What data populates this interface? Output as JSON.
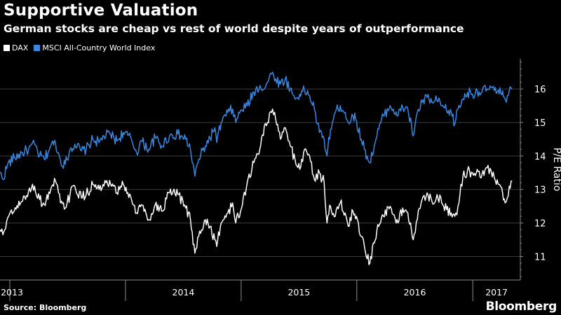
{
  "title": "Supportive Valuation",
  "subtitle": "German stocks are cheap vs rest of world despite years of outperformance",
  "source": "Source: Bloomberg",
  "brand": "Bloomberg",
  "colors": {
    "background": "#000000",
    "dax": "#ffffff",
    "msci": "#3a87e0",
    "grid": "#3c3c3c",
    "axis": "#8a8a8a"
  },
  "chart_data": {
    "type": "line",
    "ylabel": "P/E Ratio",
    "y_axis_side": "right",
    "ylim": [
      10.3,
      16.9
    ],
    "yticks": [
      11,
      12,
      13,
      14,
      15,
      16
    ],
    "xlim": [
      "2012-12-01",
      "2017-05-31"
    ],
    "xticks": [
      {
        "label": "2013",
        "date": "2013-01-01"
      },
      {
        "label": "2014",
        "date": "2014-01-01"
      },
      {
        "label": "2015",
        "date": "2015-01-01"
      },
      {
        "label": "2016",
        "date": "2016-01-01"
      },
      {
        "label": "2017",
        "date": "2017-01-01"
      }
    ],
    "grid": true,
    "legend_position": "top-left",
    "series": [
      {
        "name": "DAX",
        "color": "#ffffff",
        "points": [
          [
            "2012-12-01",
            11.8
          ],
          [
            "2012-12-10",
            11.65
          ],
          [
            "2012-12-25",
            12.15
          ],
          [
            "2013-01-15",
            12.35
          ],
          [
            "2013-02-10",
            12.65
          ],
          [
            "2013-03-01",
            12.95
          ],
          [
            "2013-03-20",
            13.1
          ],
          [
            "2013-04-05",
            12.7
          ],
          [
            "2013-04-20",
            12.55
          ],
          [
            "2013-05-10",
            13.0
          ],
          [
            "2013-05-25",
            13.25
          ],
          [
            "2013-06-10",
            12.6
          ],
          [
            "2013-06-25",
            12.45
          ],
          [
            "2013-07-10",
            12.85
          ],
          [
            "2013-07-25",
            13.1
          ],
          [
            "2013-08-15",
            12.75
          ],
          [
            "2013-08-30",
            12.85
          ],
          [
            "2013-09-20",
            13.15
          ],
          [
            "2013-10-10",
            13.0
          ],
          [
            "2013-10-25",
            13.1
          ],
          [
            "2013-11-15",
            13.15
          ],
          [
            "2013-12-05",
            12.9
          ],
          [
            "2013-12-25",
            13.15
          ],
          [
            "2014-01-20",
            12.7
          ],
          [
            "2014-02-05",
            12.3
          ],
          [
            "2014-02-20",
            12.55
          ],
          [
            "2014-03-15",
            12.1
          ],
          [
            "2014-04-05",
            12.55
          ],
          [
            "2014-04-25",
            12.35
          ],
          [
            "2014-05-20",
            12.9
          ],
          [
            "2014-06-15",
            12.85
          ],
          [
            "2014-07-10",
            12.45
          ],
          [
            "2014-07-25",
            12.1
          ],
          [
            "2014-08-08",
            11.1
          ],
          [
            "2014-08-20",
            11.6
          ],
          [
            "2014-09-10",
            12.1
          ],
          [
            "2014-09-25",
            11.9
          ],
          [
            "2014-10-10",
            11.5
          ],
          [
            "2014-10-16",
            11.3
          ],
          [
            "2014-10-30",
            12.0
          ],
          [
            "2014-11-20",
            12.3
          ],
          [
            "2014-12-05",
            12.6
          ],
          [
            "2014-12-15",
            12.0
          ],
          [
            "2014-12-30",
            12.35
          ],
          [
            "2015-01-20",
            13.2
          ],
          [
            "2015-02-10",
            13.8
          ],
          [
            "2015-03-01",
            14.2
          ],
          [
            "2015-03-15",
            14.9
          ],
          [
            "2015-03-25",
            15.0
          ],
          [
            "2015-04-10",
            15.4
          ],
          [
            "2015-04-20",
            15.1
          ],
          [
            "2015-05-05",
            14.5
          ],
          [
            "2015-05-20",
            14.85
          ],
          [
            "2015-06-05",
            14.3
          ],
          [
            "2015-06-20",
            13.9
          ],
          [
            "2015-07-05",
            13.6
          ],
          [
            "2015-07-20",
            14.2
          ],
          [
            "2015-08-05",
            14.0
          ],
          [
            "2015-08-20",
            13.3
          ],
          [
            "2015-09-05",
            13.5
          ],
          [
            "2015-09-20",
            13.2
          ],
          [
            "2015-09-29",
            12.0
          ],
          [
            "2015-10-10",
            12.5
          ],
          [
            "2015-10-25",
            12.2
          ],
          [
            "2015-11-10",
            12.6
          ],
          [
            "2015-11-25",
            12.3
          ],
          [
            "2015-12-05",
            11.9
          ],
          [
            "2015-12-20",
            12.35
          ],
          [
            "2015-12-31",
            12.2
          ],
          [
            "2016-01-15",
            11.6
          ],
          [
            "2016-01-25",
            11.3
          ],
          [
            "2016-02-11",
            10.8
          ],
          [
            "2016-02-25",
            11.4
          ],
          [
            "2016-03-10",
            11.9
          ],
          [
            "2016-03-25",
            12.2
          ],
          [
            "2016-04-15",
            12.5
          ],
          [
            "2016-04-25",
            12.25
          ],
          [
            "2016-05-10",
            12.0
          ],
          [
            "2016-05-25",
            12.45
          ],
          [
            "2016-06-10",
            12.3
          ],
          [
            "2016-06-27",
            11.5
          ],
          [
            "2016-07-10",
            12.1
          ],
          [
            "2016-07-25",
            12.7
          ],
          [
            "2016-08-10",
            12.9
          ],
          [
            "2016-08-25",
            12.65
          ],
          [
            "2016-09-10",
            12.85
          ],
          [
            "2016-09-25",
            12.6
          ],
          [
            "2016-10-10",
            12.4
          ],
          [
            "2016-10-25",
            12.3
          ],
          [
            "2016-11-05",
            12.2
          ],
          [
            "2016-11-15",
            12.5
          ],
          [
            "2016-12-01",
            13.4
          ],
          [
            "2016-12-15",
            13.55
          ],
          [
            "2016-12-31",
            13.5
          ],
          [
            "2017-01-15",
            13.6
          ],
          [
            "2017-01-30",
            13.45
          ],
          [
            "2017-02-15",
            13.65
          ],
          [
            "2017-02-28",
            13.55
          ],
          [
            "2017-03-10",
            13.35
          ],
          [
            "2017-03-25",
            13.15
          ],
          [
            "2017-04-05",
            12.9
          ],
          [
            "2017-04-13",
            12.6
          ],
          [
            "2017-04-20",
            12.75
          ],
          [
            "2017-04-26",
            13.1
          ],
          [
            "2017-05-05",
            13.25
          ]
        ]
      },
      {
        "name": "MSCI All-Country World Index",
        "color": "#3a87e0",
        "points": [
          [
            "2012-12-01",
            13.5
          ],
          [
            "2012-12-10",
            13.3
          ],
          [
            "2012-12-25",
            13.75
          ],
          [
            "2013-01-15",
            13.95
          ],
          [
            "2013-02-10",
            14.1
          ],
          [
            "2013-03-01",
            14.2
          ],
          [
            "2013-03-20",
            14.35
          ],
          [
            "2013-04-05",
            14.0
          ],
          [
            "2013-04-20",
            13.9
          ],
          [
            "2013-05-10",
            14.3
          ],
          [
            "2013-05-25",
            14.4
          ],
          [
            "2013-06-10",
            13.85
          ],
          [
            "2013-06-25",
            13.75
          ],
          [
            "2013-07-10",
            14.2
          ],
          [
            "2013-07-25",
            14.35
          ],
          [
            "2013-08-15",
            14.15
          ],
          [
            "2013-08-30",
            14.2
          ],
          [
            "2013-09-20",
            14.5
          ],
          [
            "2013-10-10",
            14.4
          ],
          [
            "2013-10-25",
            14.6
          ],
          [
            "2013-11-15",
            14.65
          ],
          [
            "2013-12-05",
            14.45
          ],
          [
            "2013-12-25",
            14.7
          ],
          [
            "2014-01-20",
            14.5
          ],
          [
            "2014-02-05",
            14.1
          ],
          [
            "2014-02-20",
            14.45
          ],
          [
            "2014-03-15",
            14.2
          ],
          [
            "2014-04-05",
            14.55
          ],
          [
            "2014-04-25",
            14.3
          ],
          [
            "2014-05-20",
            14.6
          ],
          [
            "2014-06-15",
            14.65
          ],
          [
            "2014-07-10",
            14.5
          ],
          [
            "2014-07-25",
            14.2
          ],
          [
            "2014-08-08",
            13.4
          ],
          [
            "2014-08-20",
            13.9
          ],
          [
            "2014-09-10",
            14.3
          ],
          [
            "2014-09-25",
            14.55
          ],
          [
            "2014-10-10",
            14.85
          ],
          [
            "2014-10-16",
            14.4
          ],
          [
            "2014-10-30",
            15.0
          ],
          [
            "2014-11-20",
            15.3
          ],
          [
            "2014-12-05",
            15.4
          ],
          [
            "2014-12-15",
            15.0
          ],
          [
            "2014-12-30",
            15.35
          ],
          [
            "2015-01-20",
            15.5
          ],
          [
            "2015-02-10",
            15.9
          ],
          [
            "2015-03-01",
            16.1
          ],
          [
            "2015-03-15",
            16.0
          ],
          [
            "2015-03-25",
            16.2
          ],
          [
            "2015-04-10",
            16.5
          ],
          [
            "2015-04-20",
            16.3
          ],
          [
            "2015-05-05",
            16.15
          ],
          [
            "2015-05-20",
            16.3
          ],
          [
            "2015-06-05",
            16.0
          ],
          [
            "2015-06-20",
            15.7
          ],
          [
            "2015-07-05",
            15.85
          ],
          [
            "2015-07-20",
            15.95
          ],
          [
            "2015-08-05",
            15.8
          ],
          [
            "2015-08-20",
            15.4
          ],
          [
            "2015-09-05",
            14.7
          ],
          [
            "2015-09-20",
            14.5
          ],
          [
            "2015-09-29",
            14.0
          ],
          [
            "2015-10-10",
            14.8
          ],
          [
            "2015-10-25",
            15.3
          ],
          [
            "2015-11-10",
            15.5
          ],
          [
            "2015-11-25",
            15.3
          ],
          [
            "2015-12-05",
            15.0
          ],
          [
            "2015-12-20",
            15.2
          ],
          [
            "2015-12-31",
            15.05
          ],
          [
            "2016-01-15",
            14.5
          ],
          [
            "2016-01-25",
            14.2
          ],
          [
            "2016-02-11",
            13.8
          ],
          [
            "2016-02-25",
            14.3
          ],
          [
            "2016-03-10",
            14.8
          ],
          [
            "2016-03-25",
            15.2
          ],
          [
            "2016-04-15",
            15.5
          ],
          [
            "2016-04-25",
            15.4
          ],
          [
            "2016-05-10",
            15.2
          ],
          [
            "2016-05-25",
            15.45
          ],
          [
            "2016-06-10",
            15.4
          ],
          [
            "2016-06-27",
            14.6
          ],
          [
            "2016-07-10",
            15.3
          ],
          [
            "2016-07-25",
            15.6
          ],
          [
            "2016-08-10",
            15.75
          ],
          [
            "2016-08-25",
            15.6
          ],
          [
            "2016-09-10",
            15.65
          ],
          [
            "2016-09-25",
            15.5
          ],
          [
            "2016-10-10",
            15.35
          ],
          [
            "2016-10-25",
            15.3
          ],
          [
            "2016-11-05",
            14.95
          ],
          [
            "2016-11-15",
            15.4
          ],
          [
            "2016-12-01",
            15.7
          ],
          [
            "2016-12-15",
            15.9
          ],
          [
            "2016-12-31",
            15.85
          ],
          [
            "2017-01-15",
            15.95
          ],
          [
            "2017-01-30",
            15.9
          ],
          [
            "2017-02-15",
            16.0
          ],
          [
            "2017-02-28",
            16.05
          ],
          [
            "2017-03-10",
            15.95
          ],
          [
            "2017-03-25",
            15.85
          ],
          [
            "2017-04-05",
            15.95
          ],
          [
            "2017-04-13",
            15.7
          ],
          [
            "2017-04-20",
            15.8
          ],
          [
            "2017-04-26",
            15.95
          ],
          [
            "2017-05-05",
            16.0
          ]
        ]
      }
    ]
  }
}
